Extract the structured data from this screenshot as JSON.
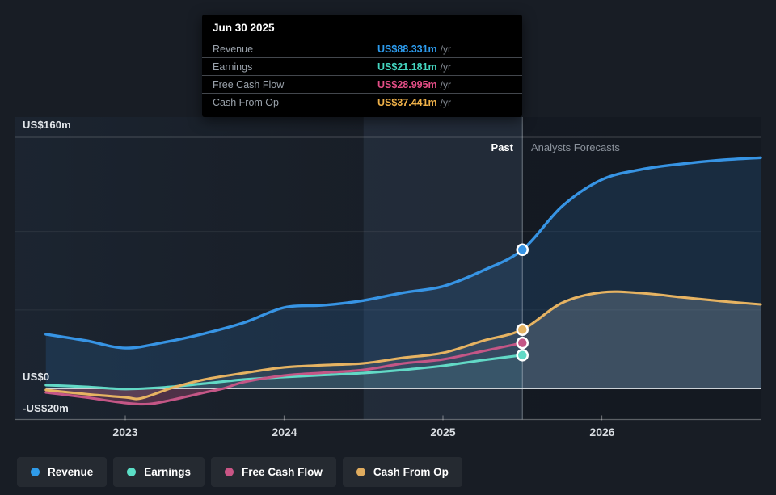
{
  "tooltip": {
    "date": "Jun 30 2025",
    "rows": [
      {
        "label": "Revenue",
        "value": "US$88.331m",
        "suffix": "/yr",
        "color": "#2d9cef"
      },
      {
        "label": "Earnings",
        "value": "US$21.181m",
        "suffix": "/yr",
        "color": "#45d6c0"
      },
      {
        "label": "Free Cash Flow",
        "value": "US$28.995m",
        "suffix": "/yr",
        "color": "#e44e87"
      },
      {
        "label": "Cash From Op",
        "value": "US$37.441m",
        "suffix": "/yr",
        "color": "#efb149"
      }
    ]
  },
  "annotations": {
    "past": "Past",
    "forecast": "Analysts Forecasts"
  },
  "axes": {
    "y_labels": [
      "US$160m",
      "US$0",
      "-US$20m"
    ],
    "x_labels": [
      "2023",
      "2024",
      "2025",
      "2026"
    ]
  },
  "legend": [
    {
      "label": "Revenue",
      "color": "#2f9be9"
    },
    {
      "label": "Earnings",
      "color": "#5bdec6"
    },
    {
      "label": "Free Cash Flow",
      "color": "#c95585"
    },
    {
      "label": "Cash From Op",
      "color": "#e0ac5f"
    }
  ],
  "chart_data": {
    "type": "line",
    "units": "US$ millions per year",
    "ylim": [
      -20,
      160
    ],
    "y_gridline_values": [
      160,
      100,
      50
    ],
    "y_zero_value": 0,
    "y_axis_value": -20,
    "x_ticks": [
      2023,
      2024,
      2025,
      2026
    ],
    "x_range": [
      2022.5,
      2027
    ],
    "divider_x": 2025.5,
    "divider_date": "Jun 30 2025",
    "highlight_band_x": [
      2024.5,
      2025.5
    ],
    "marker_x": 2025.5,
    "series": [
      {
        "name": "Revenue",
        "color": "#3794e4",
        "forecast_extends": true,
        "points": [
          [
            2022.5,
            34.5
          ],
          [
            2022.75,
            30.5
          ],
          [
            2023,
            25.7
          ],
          [
            2023.25,
            29.5
          ],
          [
            2023.5,
            35.0
          ],
          [
            2023.75,
            42.0
          ],
          [
            2024,
            51.5
          ],
          [
            2024.25,
            53.0
          ],
          [
            2024.5,
            56.0
          ],
          [
            2024.75,
            61.0
          ],
          [
            2025,
            65.0
          ],
          [
            2025.25,
            75.0
          ],
          [
            2025.5,
            88.331
          ],
          [
            2025.75,
            116.0
          ],
          [
            2026,
            133.0
          ],
          [
            2026.25,
            139.5
          ],
          [
            2026.5,
            143.0
          ],
          [
            2026.75,
            145.5
          ],
          [
            2027,
            147.0
          ]
        ]
      },
      {
        "name": "Earnings",
        "color": "#62d9c6",
        "forecast_extends": false,
        "points": [
          [
            2022.5,
            2.1
          ],
          [
            2022.75,
            1.0
          ],
          [
            2023,
            -0.4
          ],
          [
            2023.25,
            0.7
          ],
          [
            2023.5,
            3.1
          ],
          [
            2023.75,
            5.7
          ],
          [
            2024,
            7.2
          ],
          [
            2024.25,
            8.5
          ],
          [
            2024.5,
            9.8
          ],
          [
            2024.75,
            11.8
          ],
          [
            2025,
            14.4
          ],
          [
            2025.25,
            18.0
          ],
          [
            2025.5,
            21.181
          ]
        ]
      },
      {
        "name": "Free Cash Flow",
        "color": "#c45686",
        "forecast_extends": false,
        "points": [
          [
            2022.5,
            -2.6
          ],
          [
            2022.75,
            -5.7
          ],
          [
            2023,
            -9.3
          ],
          [
            2023.15,
            -9.9
          ],
          [
            2023.3,
            -7.2
          ],
          [
            2023.5,
            -2.6
          ],
          [
            2023.62,
            0.0
          ],
          [
            2023.75,
            4.1
          ],
          [
            2024,
            8.2
          ],
          [
            2024.25,
            10.0
          ],
          [
            2024.5,
            11.8
          ],
          [
            2024.75,
            15.9
          ],
          [
            2025,
            18.5
          ],
          [
            2025.25,
            23.7
          ],
          [
            2025.5,
            28.995
          ]
        ]
      },
      {
        "name": "Cash From Op",
        "color": "#e6b362",
        "forecast_extends": true,
        "points": [
          [
            2022.5,
            -1.0
          ],
          [
            2022.75,
            -3.6
          ],
          [
            2023,
            -5.7
          ],
          [
            2023.1,
            -6.3
          ],
          [
            2023.3,
            0.5
          ],
          [
            2023.5,
            5.7
          ],
          [
            2023.75,
            9.8
          ],
          [
            2024,
            13.4
          ],
          [
            2024.25,
            14.8
          ],
          [
            2024.5,
            16.0
          ],
          [
            2024.75,
            19.5
          ],
          [
            2025,
            22.6
          ],
          [
            2025.25,
            30.3
          ],
          [
            2025.5,
            37.441
          ],
          [
            2025.75,
            54.5
          ],
          [
            2026,
            61.2
          ],
          [
            2026.25,
            60.7
          ],
          [
            2026.5,
            58.1
          ],
          [
            2026.75,
            55.6
          ],
          [
            2027,
            53.5
          ]
        ]
      }
    ]
  }
}
